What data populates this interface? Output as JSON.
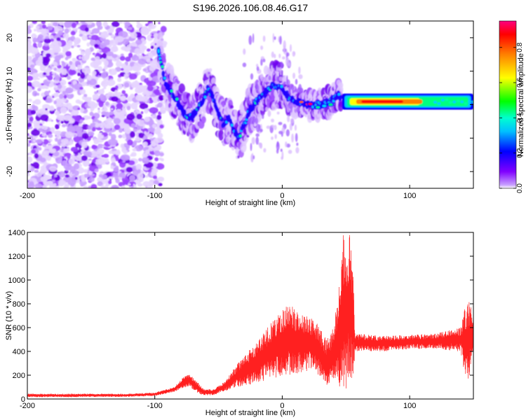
{
  "title": "S196.2026.106.08.46.G17",
  "chart_data": [
    {
      "type": "heatmap",
      "xlabel": "Height of straight line (km)",
      "ylabel": "Frequency (Hz)",
      "xlim": [
        -200,
        150
      ],
      "ylim": [
        -25,
        25
      ],
      "xticks": [
        -200,
        -100,
        0,
        100
      ],
      "yticks": [
        -20,
        -10,
        0,
        10,
        20
      ],
      "xtick_labels": [
        "-200",
        "-100",
        "0",
        "100"
      ],
      "ytick_labels": [
        "-20",
        "-10",
        "0",
        "10",
        "20"
      ],
      "colorbar": {
        "label": "Normalized spectral amplitude",
        "range": [
          0,
          0.95
        ],
        "ticks": [
          0.0,
          0.2,
          0.4,
          0.6,
          0.8
        ],
        "tick_labels": [
          "0.0",
          "0.2",
          "0.4",
          "0.6",
          "0.8"
        ],
        "colors": [
          "#ffffff",
          "#8000ff",
          "#0000ff",
          "#00ffff",
          "#00ff00",
          "#ffff00",
          "#ff8000",
          "#ff0000",
          "#ff0080"
        ]
      },
      "ridge": [
        {
          "x": -97,
          "y": 16
        },
        {
          "x": -92,
          "y": 7
        },
        {
          "x": -88,
          "y": 4
        },
        {
          "x": -84,
          "y": 2
        },
        {
          "x": -80,
          "y": -1
        },
        {
          "x": -76,
          "y": -3
        },
        {
          "x": -72,
          "y": -4
        },
        {
          "x": -68,
          "y": -2
        },
        {
          "x": -64,
          "y": 0
        },
        {
          "x": -58,
          "y": 5
        },
        {
          "x": -55,
          "y": 3
        },
        {
          "x": -50,
          "y": -3
        },
        {
          "x": -46,
          "y": -6
        },
        {
          "x": -42,
          "y": -4
        },
        {
          "x": -38,
          "y": -8
        },
        {
          "x": -34,
          "y": -10
        },
        {
          "x": -30,
          "y": -6
        },
        {
          "x": -26,
          "y": -2
        },
        {
          "x": -20,
          "y": 1
        },
        {
          "x": -15,
          "y": 3
        },
        {
          "x": -10,
          "y": 5
        },
        {
          "x": -5,
          "y": 6
        },
        {
          "x": 0,
          "y": 5
        },
        {
          "x": 5,
          "y": 2
        },
        {
          "x": 10,
          "y": 1
        },
        {
          "x": 15,
          "y": 0.5
        },
        {
          "x": 22,
          "y": 0
        },
        {
          "x": 30,
          "y": 0
        },
        {
          "x": 38,
          "y": 1
        },
        {
          "x": 44,
          "y": 3
        },
        {
          "x": 48,
          "y": 1.5
        },
        {
          "x": 60,
          "y": 0.8
        },
        {
          "x": 80,
          "y": 0.8
        },
        {
          "x": 100,
          "y": 0.8
        },
        {
          "x": 120,
          "y": 0.9
        },
        {
          "x": 150,
          "y": 1
        }
      ],
      "noise_region": [
        -200,
        -95
      ]
    },
    {
      "type": "line",
      "xlabel": "Height of straight line (km)",
      "ylabel": "SNR (10 * v/v)",
      "xlim": [
        -200,
        150
      ],
      "ylim": [
        0,
        1400
      ],
      "xticks": [
        -200,
        -100,
        0,
        100
      ],
      "yticks": [
        0,
        200,
        400,
        600,
        800,
        1000,
        1200,
        1400
      ],
      "xtick_labels": [
        "-200",
        "-100",
        "0",
        "100"
      ],
      "ytick_labels": [
        "0",
        "200",
        "400",
        "600",
        "800",
        "1000",
        "1200",
        "1400"
      ],
      "series": [
        {
          "name": "SNR",
          "color": "#ff2020",
          "envelope_x": [
            -200,
            -160,
            -120,
            -100,
            -85,
            -78,
            -73,
            -68,
            -62,
            -55,
            -45,
            -35,
            -25,
            -15,
            -5,
            5,
            15,
            25,
            35,
            40,
            45,
            48,
            50,
            53,
            56,
            57,
            60,
            80,
            100,
            120,
            140,
            145,
            150
          ],
          "envelope_lo": [
            15,
            15,
            18,
            25,
            60,
            90,
            110,
            60,
            30,
            30,
            60,
            100,
            120,
            150,
            180,
            200,
            220,
            250,
            100,
            150,
            80,
            100,
            50,
            150,
            200,
            380,
            400,
            400,
            420,
            420,
            400,
            100,
            300
          ],
          "envelope_hi": [
            45,
            45,
            45,
            55,
            100,
            180,
            210,
            160,
            90,
            80,
            150,
            300,
            420,
            550,
            700,
            800,
            720,
            680,
            500,
            600,
            1000,
            1400,
            1300,
            1400,
            1000,
            550,
            550,
            530,
            540,
            550,
            600,
            850,
            800
          ]
        }
      ]
    }
  ]
}
